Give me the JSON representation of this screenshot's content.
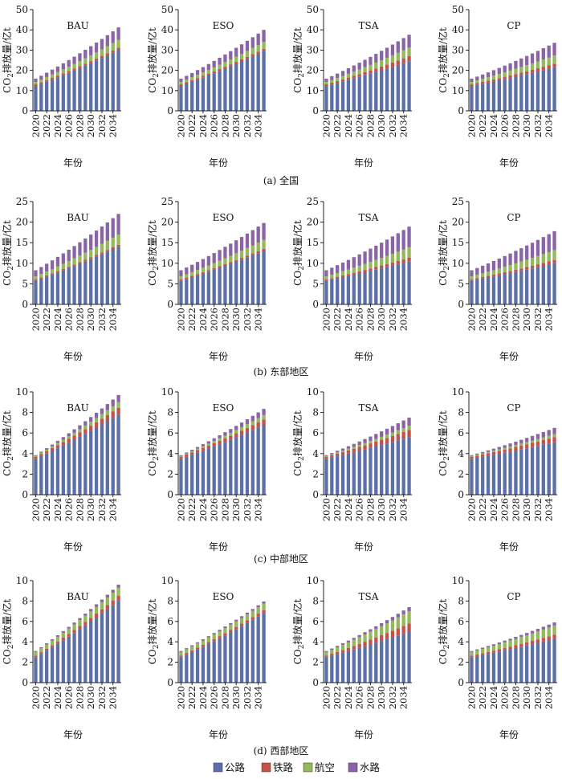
{
  "chart_data": {
    "type": "bar",
    "stacked": true,
    "x": [
      2020,
      2021,
      2022,
      2023,
      2024,
      2025,
      2026,
      2027,
      2028,
      2029,
      2030,
      2031,
      2032,
      2033,
      2034,
      2035
    ],
    "x_tick_labels": [
      "2020",
      "2022",
      "2024",
      "2026",
      "2028",
      "2030",
      "2032",
      "2034"
    ],
    "xlabel": "年份",
    "ylabel_prefix": "CO",
    "ylabel_sub": "2",
    "ylabel_suffix": "排放量/亿t",
    "legend": {
      "placement": "bottom-center",
      "items": [
        {
          "name": "公路",
          "color": "#5b6fa8"
        },
        {
          "name": "铁路",
          "color": "#c8504a"
        },
        {
          "name": "航空",
          "color": "#93b95b"
        },
        {
          "name": "水路",
          "color": "#8a64a6"
        }
      ]
    },
    "rows": [
      {
        "caption": "(a) 全国",
        "ylim": [
          0,
          50
        ],
        "yticks": [
          0,
          10,
          20,
          30,
          40,
          50
        ],
        "panels": [
          {
            "scenario": "BAU",
            "start": [
              12.3,
              0.8,
              1.2,
              1.6
            ],
            "end": [
              30.0,
              1.2,
              3.8,
              6.2
            ]
          },
          {
            "scenario": "ESO",
            "start": [
              12.3,
              0.8,
              1.2,
              1.6
            ],
            "end": [
              29.5,
              1.1,
              3.4,
              6.0
            ]
          },
          {
            "scenario": "TSA",
            "start": [
              12.3,
              0.8,
              1.2,
              1.6
            ],
            "end": [
              24.5,
              2.5,
              4.2,
              6.4
            ]
          },
          {
            "scenario": "CP",
            "start": [
              12.3,
              0.8,
              1.2,
              1.6
            ],
            "end": [
              21.5,
              1.8,
              4.0,
              6.3
            ]
          }
        ]
      },
      {
        "caption": "(b) 东部地区",
        "ylim": [
          0,
          25
        ],
        "yticks": [
          0,
          5,
          10,
          15,
          20,
          25
        ],
        "panels": [
          {
            "scenario": "BAU",
            "start": [
              5.8,
              0.3,
              0.7,
              1.5
            ],
            "end": [
              14.0,
              0.5,
              2.5,
              5.0
            ]
          },
          {
            "scenario": "ESO",
            "start": [
              5.8,
              0.3,
              0.7,
              1.5
            ],
            "end": [
              13.0,
              0.5,
              2.2,
              4.1
            ]
          },
          {
            "scenario": "TSA",
            "start": [
              5.8,
              0.3,
              0.7,
              1.5
            ],
            "end": [
              10.5,
              0.9,
              2.5,
              5.0
            ]
          },
          {
            "scenario": "CP",
            "start": [
              5.8,
              0.3,
              0.7,
              1.5
            ],
            "end": [
              10.0,
              0.8,
              2.4,
              4.6
            ]
          }
        ]
      },
      {
        "caption": "(c) 中部地区",
        "ylim": [
          0,
          10
        ],
        "yticks": [
          0,
          2,
          4,
          6,
          8,
          10
        ],
        "panels": [
          {
            "scenario": "BAU",
            "start": [
              3.5,
              0.2,
              0.08,
              0.07
            ],
            "end": [
              7.8,
              0.65,
              0.55,
              0.7
            ]
          },
          {
            "scenario": "ESO",
            "start": [
              3.5,
              0.2,
              0.08,
              0.07
            ],
            "end": [
              6.8,
              0.5,
              0.45,
              0.6
            ]
          },
          {
            "scenario": "TSA",
            "start": [
              3.5,
              0.2,
              0.08,
              0.07
            ],
            "end": [
              5.6,
              0.7,
              0.4,
              0.8
            ]
          },
          {
            "scenario": "CP",
            "start": [
              3.5,
              0.2,
              0.08,
              0.07
            ],
            "end": [
              5.1,
              0.5,
              0.3,
              0.6
            ]
          }
        ]
      },
      {
        "caption": "(d) 西部地区",
        "ylim": [
          0,
          10
        ],
        "yticks": [
          0,
          2,
          4,
          6,
          8,
          10
        ],
        "panels": [
          {
            "scenario": "BAU",
            "start": [
              2.5,
              0.15,
              0.35,
              0.1
            ],
            "end": [
              8.0,
              0.5,
              0.8,
              0.3
            ]
          },
          {
            "scenario": "ESO",
            "start": [
              2.5,
              0.15,
              0.35,
              0.1
            ],
            "end": [
              6.8,
              0.3,
              0.65,
              0.2
            ]
          },
          {
            "scenario": "TSA",
            "start": [
              2.5,
              0.15,
              0.35,
              0.1
            ],
            "end": [
              5.0,
              0.8,
              1.2,
              0.4
            ]
          },
          {
            "scenario": "CP",
            "start": [
              2.5,
              0.15,
              0.35,
              0.1
            ],
            "end": [
              4.3,
              0.4,
              0.9,
              0.3
            ]
          }
        ]
      }
    ]
  }
}
